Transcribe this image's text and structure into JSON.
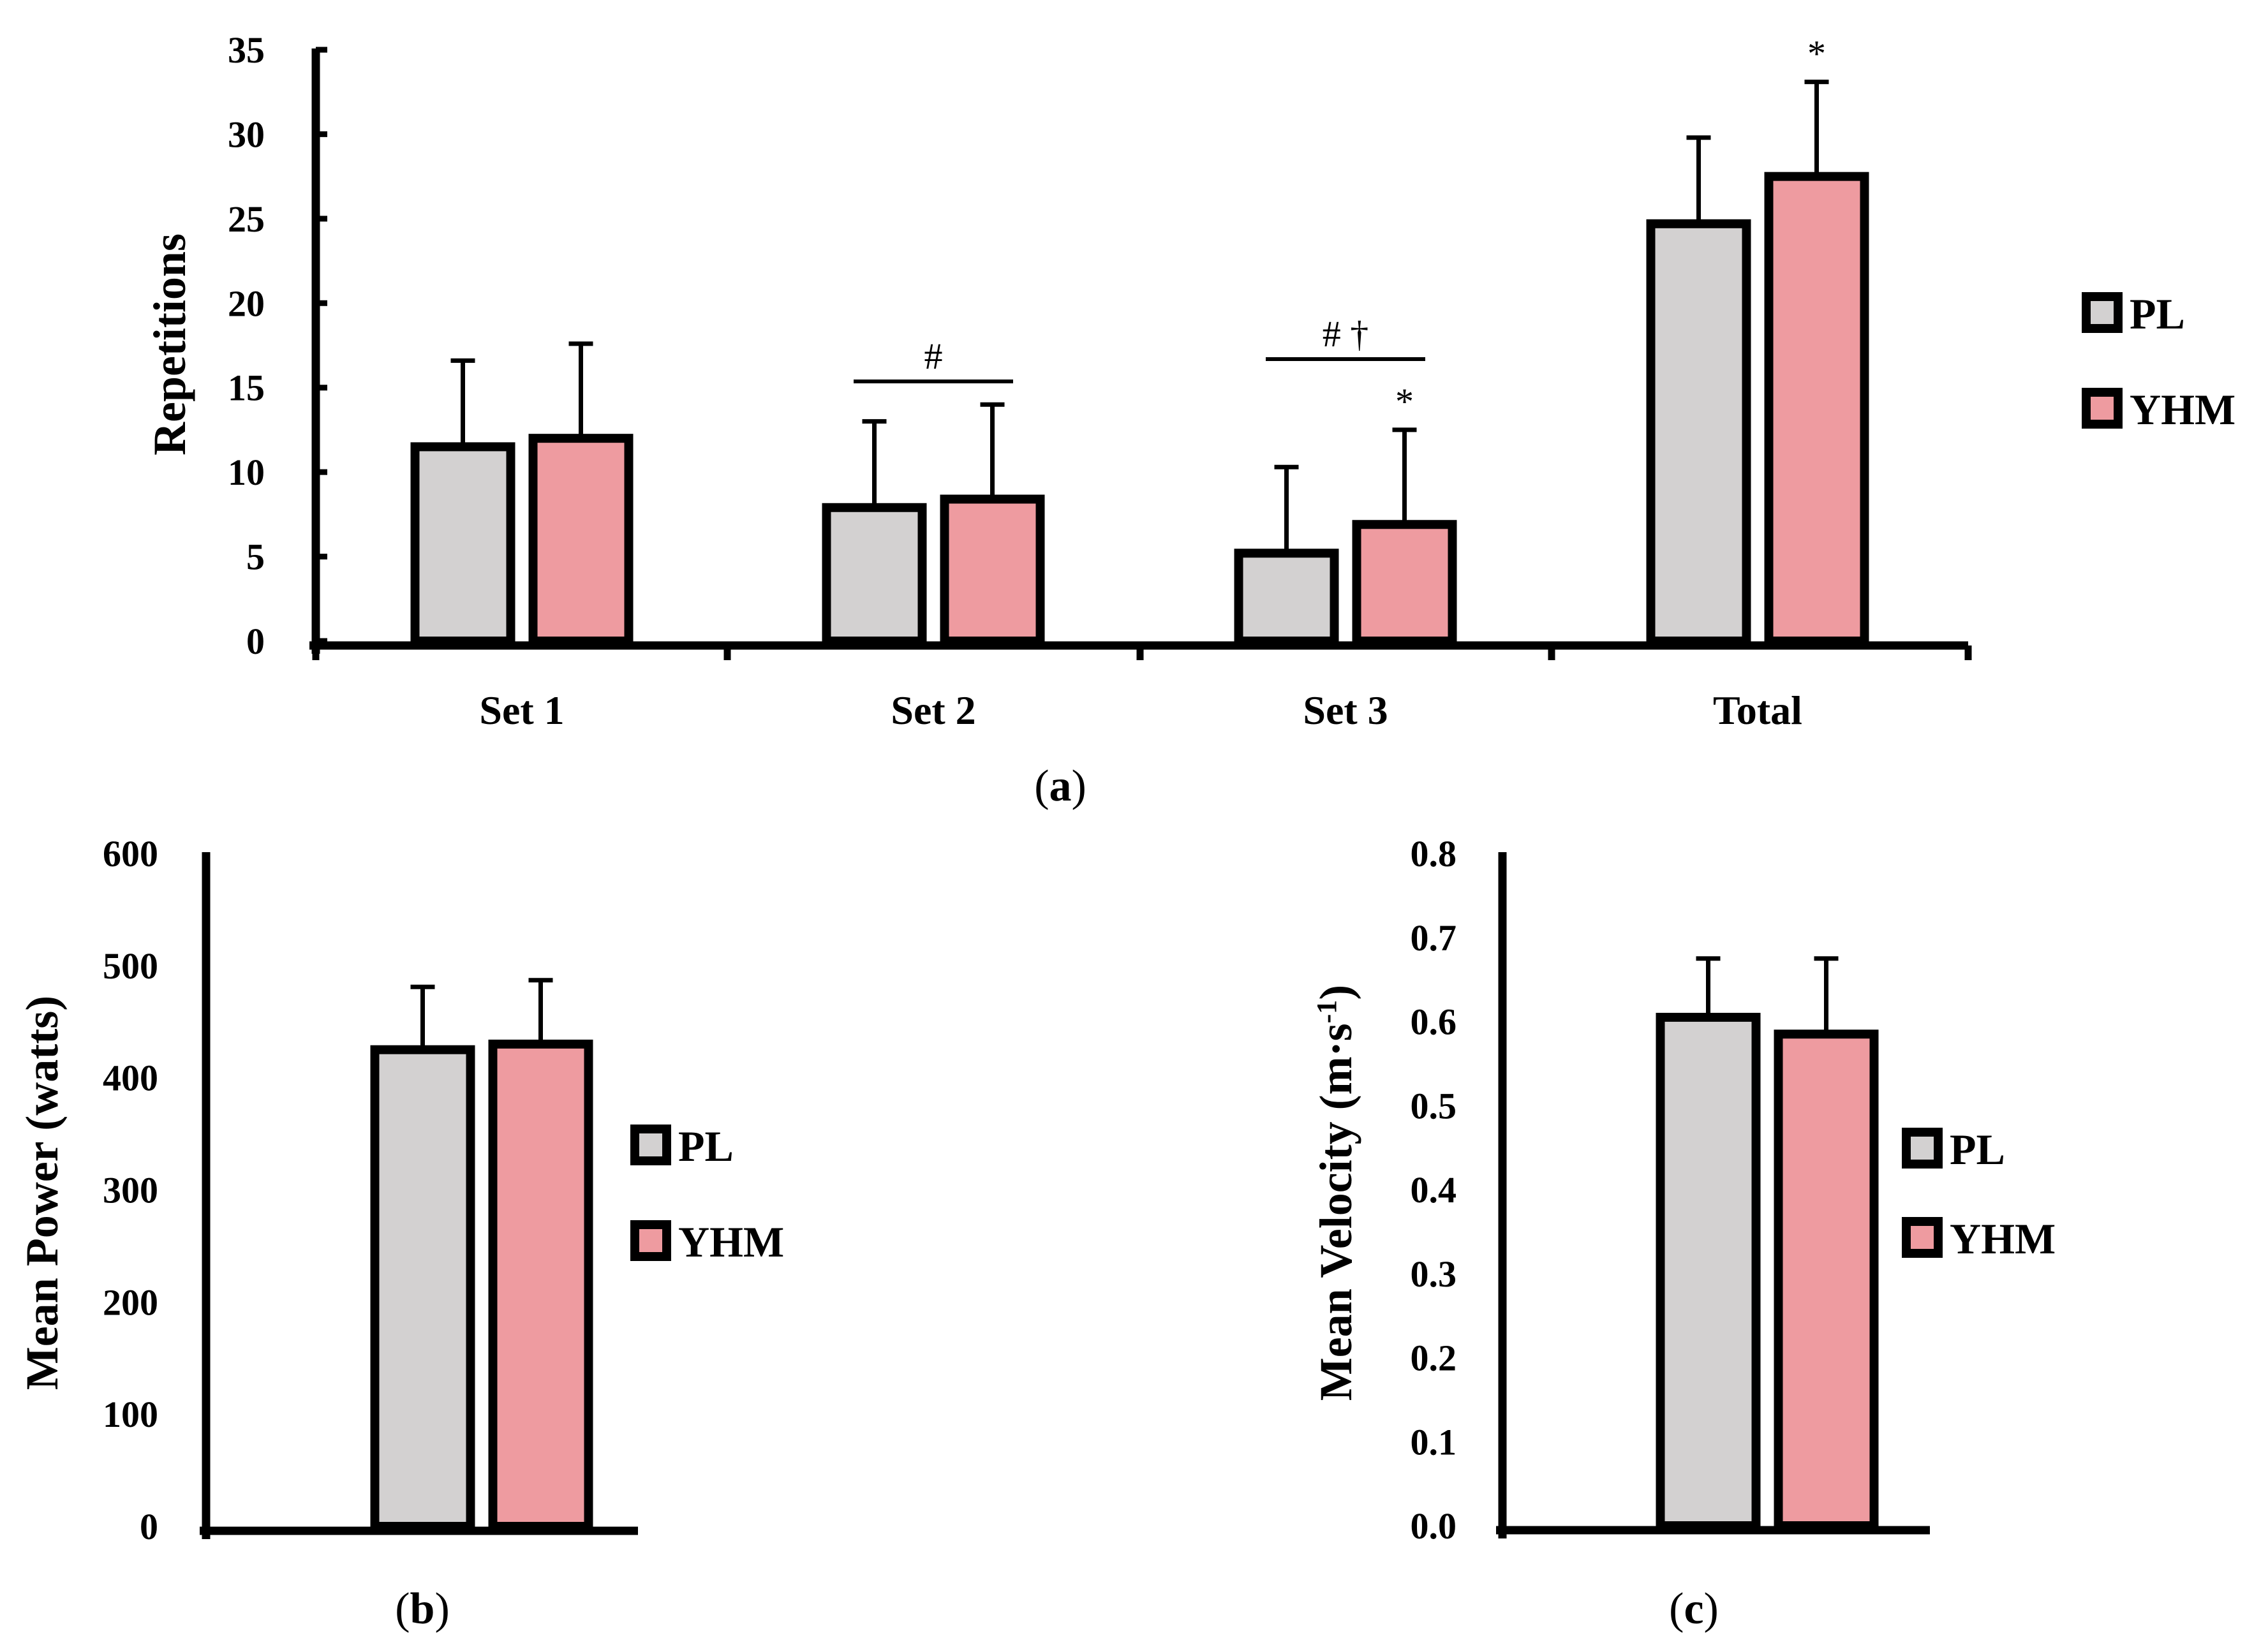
{
  "colors": {
    "PL": "#d3d1d1",
    "YHM": "#ee9ba0",
    "stroke": "#000000"
  },
  "chart_data": [
    {
      "id": "a",
      "type": "bar",
      "caption": {
        "open": "(",
        "letter": "a",
        "close": ")"
      },
      "ylabel": "Repetitions",
      "xlabel": "",
      "ylim": [
        0,
        35
      ],
      "yticks": [
        "0",
        "5",
        "10",
        "15",
        "20",
        "25",
        "30",
        "35"
      ],
      "ytick_values": [
        0,
        5,
        10,
        15,
        20,
        25,
        30,
        35
      ],
      "categories": [
        "Set 1",
        "Set 2",
        "Set 3",
        "Total"
      ],
      "series": [
        {
          "name": "PL",
          "values": [
            11.5,
            7.9,
            5.2,
            24.7
          ],
          "errors": [
            5.1,
            5.1,
            5.1,
            5.1
          ]
        },
        {
          "name": "YHM",
          "values": [
            12.0,
            8.4,
            6.9,
            27.5
          ],
          "errors": [
            5.6,
            5.6,
            5.6,
            5.6
          ]
        }
      ],
      "annotations": [
        {
          "category_index": 1,
          "text": "#",
          "type": "bracket"
        },
        {
          "category_index": 2,
          "text": "# †",
          "type": "bracket"
        },
        {
          "category_index": 2,
          "series": 1,
          "text": "*",
          "type": "star"
        },
        {
          "category_index": 3,
          "series": 1,
          "text": "*",
          "type": "star"
        }
      ],
      "legend": [
        "PL",
        "YHM"
      ],
      "legend_position": "right"
    },
    {
      "id": "b",
      "type": "bar",
      "caption": {
        "open": "(",
        "letter": "b",
        "close": ")"
      },
      "ylabel": "Mean Power (watts)",
      "xlabel": "",
      "ylim": [
        0,
        600
      ],
      "yticks": [
        "0",
        "100",
        "200",
        "300",
        "400",
        "500",
        "600"
      ],
      "ytick_values": [
        0,
        100,
        200,
        300,
        400,
        500,
        600
      ],
      "categories": [
        ""
      ],
      "series": [
        {
          "name": "PL",
          "values": [
            425
          ],
          "errors": [
            56
          ]
        },
        {
          "name": "YHM",
          "values": [
            430
          ],
          "errors": [
            57
          ]
        }
      ],
      "legend": [
        "PL",
        "YHM"
      ],
      "legend_position": "right"
    },
    {
      "id": "c",
      "type": "bar",
      "caption": {
        "open": "(",
        "letter": "c",
        "close": ")"
      },
      "ylabel": "Mean Velocity (m·s",
      "ylabel_sup": "-1",
      "ylabel_close": ")",
      "xlabel": "",
      "ylim": [
        0,
        0.8
      ],
      "yticks": [
        "0.0",
        "0.1",
        "0.2",
        "0.3",
        "0.4",
        "0.5",
        "0.6",
        "0.7",
        "0.8"
      ],
      "ytick_values": [
        0,
        0.1,
        0.2,
        0.3,
        0.4,
        0.5,
        0.6,
        0.7,
        0.8
      ],
      "categories": [
        ""
      ],
      "series": [
        {
          "name": "PL",
          "values": [
            0.605
          ],
          "errors": [
            0.07
          ]
        },
        {
          "name": "YHM",
          "values": [
            0.585
          ],
          "errors": [
            0.09
          ]
        }
      ],
      "legend": [
        "PL",
        "YHM"
      ],
      "legend_position": "right"
    }
  ]
}
